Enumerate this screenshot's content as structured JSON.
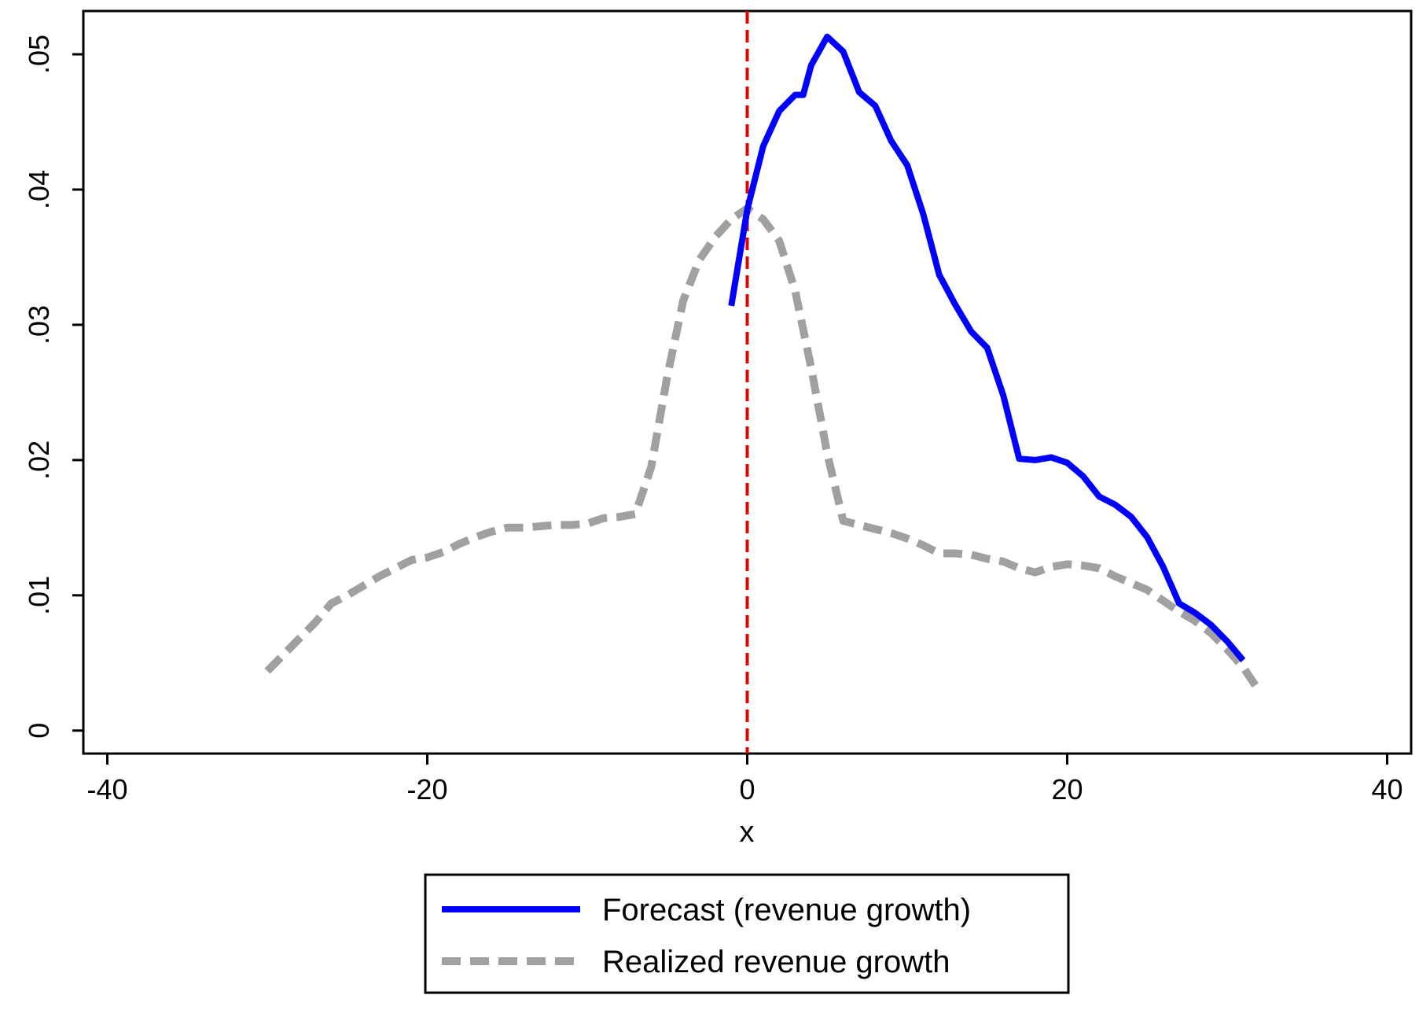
{
  "chart_data": {
    "type": "line",
    "title": "",
    "xlabel": "x",
    "ylabel": "",
    "xlim": [
      -41.5,
      41.5
    ],
    "ylim": [
      -0.0017,
      0.0532
    ],
    "x_ticks": [
      -40,
      -20,
      0,
      20,
      40
    ],
    "x_tick_labels": [
      "-40",
      "-20",
      "0",
      "20",
      "40"
    ],
    "y_ticks": [
      0,
      0.01,
      0.02,
      0.03,
      0.04,
      0.05
    ],
    "y_tick_labels": [
      "0",
      ".01",
      ".02",
      ".03",
      ".04",
      ".05"
    ],
    "grid": false,
    "legend_position": "bottom",
    "reference_line": {
      "x": 0,
      "color": "#e00000",
      "style": "dashed"
    },
    "series": [
      {
        "name": "Forecast (revenue growth)",
        "color": "#0000ff",
        "style": "solid",
        "x": [
          -1,
          0,
          1,
          2,
          3,
          3.5,
          4,
          5,
          6,
          7,
          8,
          9,
          10,
          11,
          12,
          13,
          14,
          15,
          16,
          17,
          18,
          19,
          20,
          21,
          22,
          23,
          24,
          25,
          26,
          27,
          28,
          29,
          30,
          31
        ],
        "y": [
          0.0314,
          0.0385,
          0.0432,
          0.0458,
          0.047,
          0.047,
          0.0492,
          0.0513,
          0.0502,
          0.0472,
          0.0462,
          0.0436,
          0.0418,
          0.0382,
          0.0337,
          0.0315,
          0.0295,
          0.0283,
          0.0248,
          0.0201,
          0.02,
          0.0202,
          0.0198,
          0.0188,
          0.0173,
          0.0167,
          0.0158,
          0.0143,
          0.0121,
          0.0094,
          0.0087,
          0.0078,
          0.0066,
          0.0052
        ]
      },
      {
        "name": "Realized revenue growth",
        "color": "#a0a0a0",
        "style": "dashed",
        "x": [
          -30,
          -29,
          -28,
          -27,
          -26,
          -25,
          -24,
          -23,
          -22,
          -21,
          -20,
          -19,
          -18,
          -17,
          -16,
          -15,
          -14,
          -13,
          -12,
          -11,
          -10,
          -9,
          -8,
          -7,
          -6,
          -5,
          -4,
          -3,
          -2,
          -1,
          0,
          1,
          2,
          3,
          4,
          5,
          6,
          7,
          8,
          9,
          10,
          11,
          12,
          13,
          14,
          15,
          16,
          17,
          18,
          19,
          20,
          21,
          22,
          23,
          24,
          25,
          26,
          27,
          28,
          29,
          30,
          31,
          32
        ],
        "y": [
          0.0044,
          0.0056,
          0.0068,
          0.008,
          0.0094,
          0.01,
          0.0107,
          0.0114,
          0.012,
          0.0126,
          0.0128,
          0.0132,
          0.0138,
          0.0143,
          0.0147,
          0.015,
          0.015,
          0.0151,
          0.0152,
          0.0152,
          0.0153,
          0.0157,
          0.0158,
          0.016,
          0.0195,
          0.0262,
          0.0318,
          0.0348,
          0.0365,
          0.0378,
          0.0386,
          0.0378,
          0.0362,
          0.0325,
          0.0268,
          0.0205,
          0.0155,
          0.0152,
          0.0149,
          0.0146,
          0.0142,
          0.0137,
          0.0131,
          0.0131,
          0.013,
          0.0127,
          0.0125,
          0.012,
          0.0117,
          0.0121,
          0.0123,
          0.0122,
          0.012,
          0.0114,
          0.0109,
          0.0104,
          0.0096,
          0.0088,
          0.0081,
          0.0072,
          0.006,
          0.0047,
          0.0029
        ]
      }
    ]
  }
}
